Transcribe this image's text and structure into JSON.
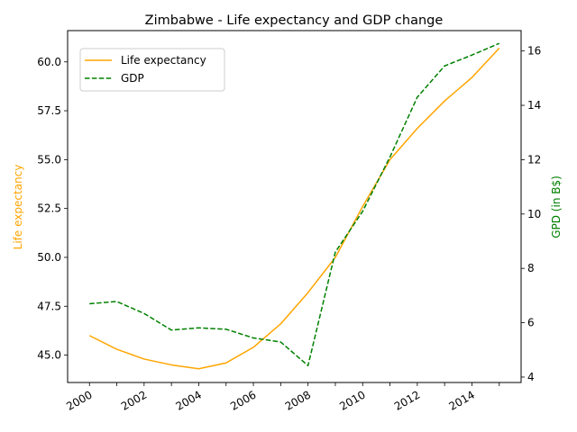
{
  "chart_data": {
    "type": "line",
    "title": "Zimbabwe - Life expectancy and GDP change",
    "x": [
      2000,
      2001,
      2002,
      2003,
      2004,
      2005,
      2006,
      2007,
      2008,
      2009,
      2010,
      2011,
      2012,
      2013,
      2014,
      2015
    ],
    "x_ticks": [
      "2000",
      "2002",
      "2004",
      "2006",
      "2008",
      "2010",
      "2012",
      "2014"
    ],
    "xlim": [
      1999.2,
      2015.8
    ],
    "series": [
      {
        "name": "Life expectancy",
        "axis": "left",
        "color": "#ffa500",
        "dash": "solid",
        "values": [
          46.0,
          45.3,
          44.8,
          44.5,
          44.3,
          44.6,
          45.4,
          46.6,
          48.2,
          50.0,
          52.6,
          55.0,
          56.6,
          58.0,
          59.2,
          60.7
        ]
      },
      {
        "name": "GDP",
        "axis": "right",
        "color": "#008000",
        "dash": "dashed",
        "values": [
          6.7,
          6.78,
          6.34,
          5.73,
          5.81,
          5.76,
          5.44,
          5.29,
          4.42,
          8.6,
          10.1,
          12.1,
          14.3,
          15.45,
          15.85,
          16.28
        ]
      }
    ],
    "ylabel_left": "Life expectancy",
    "ylabel_right": "GPD (in B$)",
    "ylim_left": [
      43.6,
      61.6
    ],
    "yticks_left": [
      "45.0",
      "47.5",
      "50.0",
      "52.5",
      "55.0",
      "57.5",
      "60.0"
    ],
    "ylim_right": [
      3.8,
      16.75
    ],
    "yticks_right": [
      "4",
      "6",
      "8",
      "10",
      "12",
      "14",
      "16"
    ],
    "legend_position": "upper-left",
    "grid": false,
    "colors": {
      "left_axis_label": "#ffa500",
      "right_axis_label": "#008000"
    }
  }
}
